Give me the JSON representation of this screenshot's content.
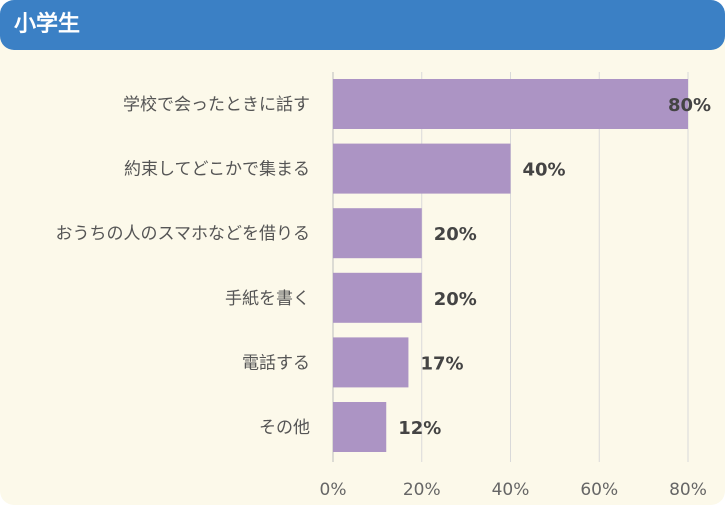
{
  "header": {
    "title": "小学生"
  },
  "colors": {
    "header": "#3b80c5",
    "background": "#fcf9ea",
    "bar": "#ac94c4",
    "grid": "#d9d9d9"
  },
  "chart_data": {
    "type": "bar",
    "orientation": "horizontal",
    "categories": [
      "学校で会ったときに話す",
      "約束してどこかで集まる",
      "おうちの人のスマホなどを借りる",
      "手紙を書く",
      "電話する",
      "その他"
    ],
    "values": [
      80,
      40,
      20,
      20,
      17,
      12
    ],
    "value_labels": [
      "80%",
      "40%",
      "20%",
      "20%",
      "17%",
      "12%"
    ],
    "xlim": [
      0,
      80
    ],
    "xticks": [
      "0%",
      "20%",
      "40%",
      "60%",
      "80%"
    ],
    "grid": true
  }
}
